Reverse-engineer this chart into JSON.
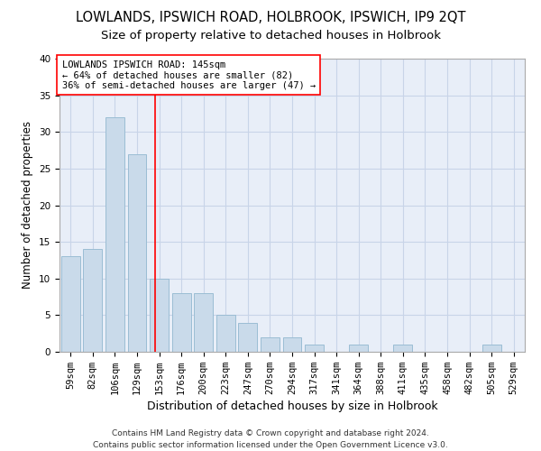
{
  "title1": "LOWLANDS, IPSWICH ROAD, HOLBROOK, IPSWICH, IP9 2QT",
  "title2": "Size of property relative to detached houses in Holbrook",
  "xlabel": "Distribution of detached houses by size in Holbrook",
  "ylabel": "Number of detached properties",
  "categories": [
    "59sqm",
    "82sqm",
    "106sqm",
    "129sqm",
    "153sqm",
    "176sqm",
    "200sqm",
    "223sqm",
    "247sqm",
    "270sqm",
    "294sqm",
    "317sqm",
    "341sqm",
    "364sqm",
    "388sqm",
    "411sqm",
    "435sqm",
    "458sqm",
    "482sqm",
    "505sqm",
    "529sqm"
  ],
  "values": [
    13,
    14,
    32,
    27,
    10,
    8,
    8,
    5,
    4,
    2,
    2,
    1,
    0,
    1,
    0,
    1,
    0,
    0,
    0,
    1,
    0
  ],
  "bar_color": "#c9daea",
  "bar_edge_color": "#9bbdd4",
  "grid_color": "#c8d4e8",
  "background_color": "#e8eef8",
  "red_line_x": 3.83,
  "annotation_line1": "LOWLANDS IPSWICH ROAD: 145sqm",
  "annotation_line2": "← 64% of detached houses are smaller (82)",
  "annotation_line3": "36% of semi-detached houses are larger (47) →",
  "footer_line1": "Contains HM Land Registry data © Crown copyright and database right 2024.",
  "footer_line2": "Contains public sector information licensed under the Open Government Licence v3.0.",
  "ylim": [
    0,
    40
  ],
  "yticks": [
    0,
    5,
    10,
    15,
    20,
    25,
    30,
    35,
    40
  ],
  "title1_fontsize": 10.5,
  "title2_fontsize": 9.5,
  "xlabel_fontsize": 9,
  "ylabel_fontsize": 8.5,
  "tick_fontsize": 7.5,
  "annotation_fontsize": 7.5,
  "footer_fontsize": 6.5
}
